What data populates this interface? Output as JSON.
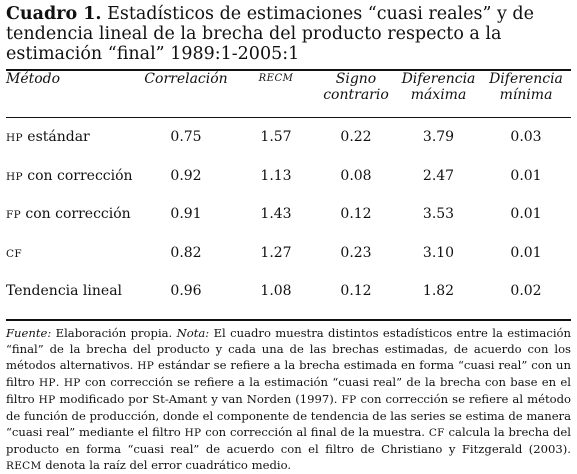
{
  "title": {
    "label": "Cuadro 1.",
    "text": "Estadísticos de estimaciones “cuasi reales” y de tendencia lineal de la brecha del producto respecto a la estimación “final” 1989:1-2005:1"
  },
  "table": {
    "headers": {
      "method": "Método",
      "correlation": "Correlación",
      "recm": "RECM",
      "sign_line1": "Signo",
      "sign_line2": "contrario",
      "maxdiff_line1": "Diferencia",
      "maxdiff_line2": "máxima",
      "mindiff_line1": "Diferencia",
      "mindiff_line2": "mínima"
    },
    "rows": [
      {
        "abbr": "HP",
        "rest": " estándar",
        "correlation": "0.75",
        "recm": "1.57",
        "sign": "0.22",
        "max": "3.79",
        "min": "0.03"
      },
      {
        "abbr": "HP",
        "rest": " con corrección",
        "correlation": "0.92",
        "recm": "1.13",
        "sign": "0.08",
        "max": "2.47",
        "min": "0.01"
      },
      {
        "abbr": "FP",
        "rest": " con corrección",
        "correlation": "0.91",
        "recm": "1.43",
        "sign": "0.12",
        "max": "3.53",
        "min": "0.01"
      },
      {
        "abbr": "CF",
        "rest": "",
        "correlation": "0.82",
        "recm": "1.27",
        "sign": "0.23",
        "max": "3.10",
        "min": "0.01"
      },
      {
        "abbr": "",
        "rest": "Tendencia lineal",
        "correlation": "0.96",
        "recm": "1.08",
        "sign": "0.12",
        "max": "1.82",
        "min": "0.02"
      }
    ]
  },
  "notes": {
    "source_label": "Fuente:",
    "source_text": " Elaboración propia. ",
    "note_label": "Nota:",
    "s1": " El cuadro muestra distintos estadísticos entre la estimación “final” de la brecha del producto y cada una de las brechas estimadas, de acuerdo con los métodos alternativos. ",
    "a1": "HP",
    "s2": " estándar se refiere a la brecha estimada en forma “cuasi real” con un filtro ",
    "a2": "HP",
    "s3": ". ",
    "a3": "HP",
    "s4": " con corrección se refiere a la estimación “cuasi real” de la brecha con base en el filtro ",
    "a4": "HP",
    "s5": " modificado por St-Amant y van Norden (1997). ",
    "a5": "FP",
    "s6": " con corrección se refiere al método de función de producción, donde el componente de tendencia de las series se estima de manera “cuasi real” mediante el filtro ",
    "a6": "HP",
    "s7": " con corrección al final de la muestra. ",
    "a7": "CF",
    "s8": " calcula la brecha del producto en forma “cuasi real” de acuerdo con el filtro de Christiano y Fitzgerald (2003). ",
    "a8": "RECM",
    "s9": " denota la raíz del error cuadrático medio."
  }
}
